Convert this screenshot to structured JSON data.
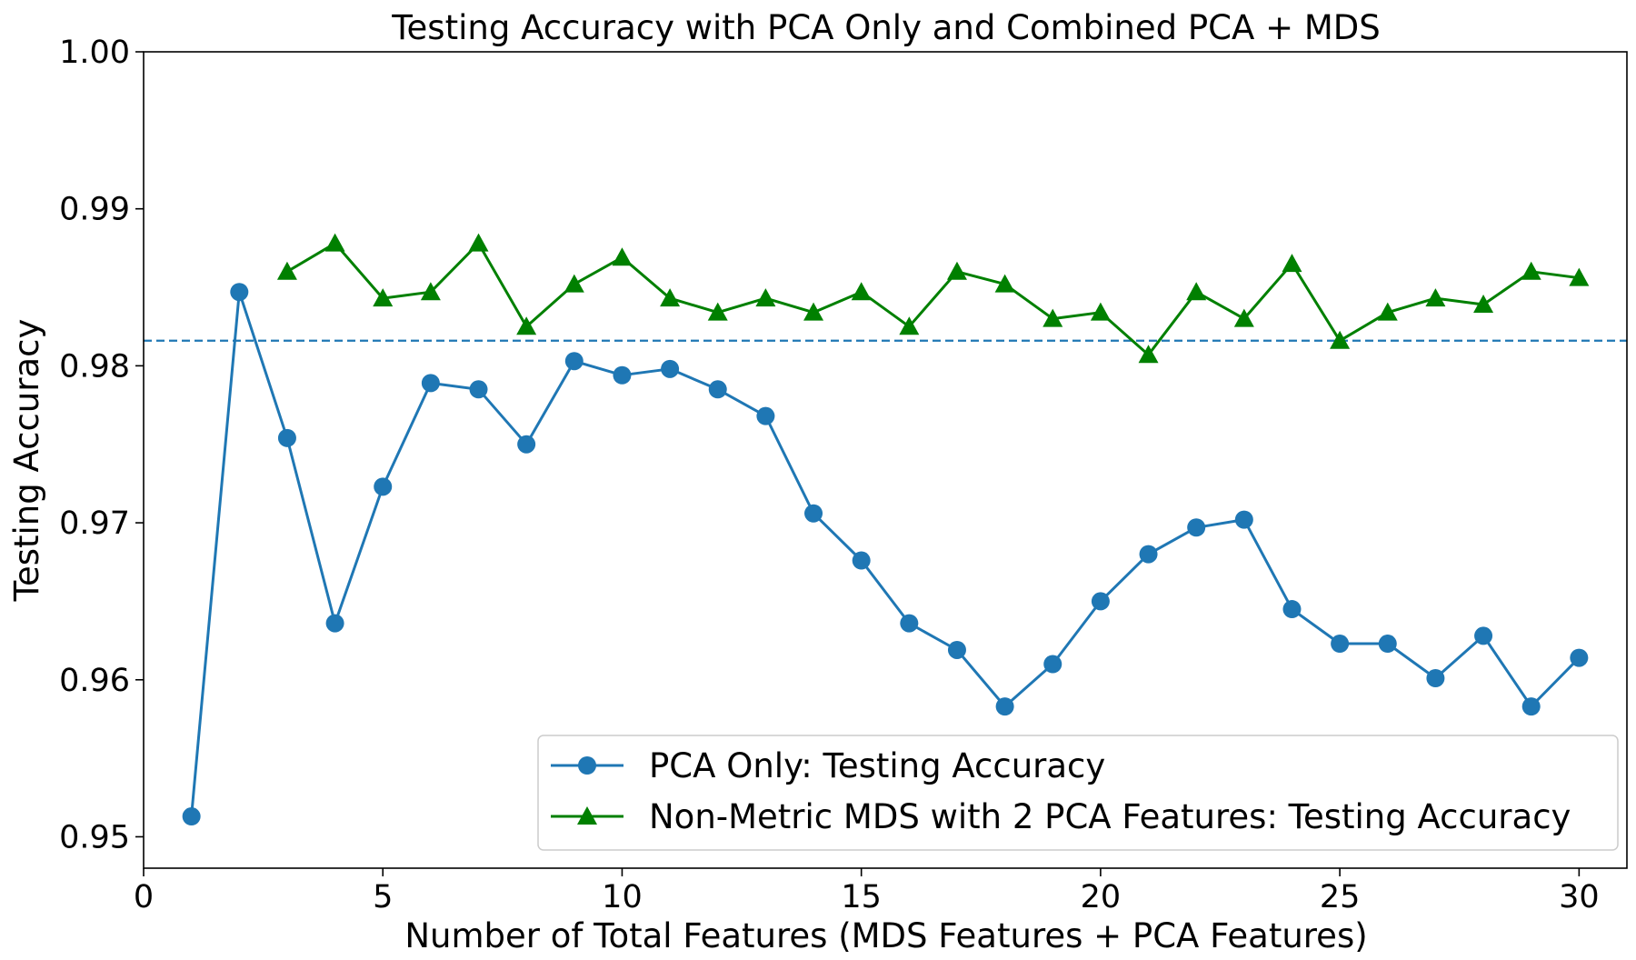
{
  "chart_data": {
    "type": "line",
    "title": "Testing Accuracy with PCA Only and Combined PCA + MDS",
    "xlabel": "Number of Total Features (MDS Features + PCA Features)",
    "ylabel": "Testing Accuracy",
    "xlim": [
      0,
      31
    ],
    "ylim": [
      0.948,
      1.0
    ],
    "xticks": [
      0,
      5,
      10,
      15,
      20,
      25,
      30
    ],
    "xtick_labels": [
      "0",
      "5",
      "10",
      "15",
      "20",
      "25",
      "30"
    ],
    "yticks": [
      0.95,
      0.96,
      0.97,
      0.98,
      0.99,
      1.0
    ],
    "ytick_labels": [
      "0.95",
      "0.96",
      "0.97",
      "0.98",
      "0.99",
      "1.00"
    ],
    "grid": false,
    "legend_position": "lower-right",
    "reference_line": {
      "y": 0.9816,
      "style": "dashed",
      "color": "#1f77b4"
    },
    "series": [
      {
        "name": "PCA Only: Testing Accuracy",
        "color": "#1f77b4",
        "marker": "circle",
        "x": [
          1,
          2,
          3,
          4,
          5,
          6,
          7,
          8,
          9,
          10,
          11,
          12,
          13,
          14,
          15,
          16,
          17,
          18,
          19,
          20,
          21,
          22,
          23,
          24,
          25,
          26,
          27,
          28,
          29,
          30
        ],
        "values": [
          0.9513,
          0.9847,
          0.9754,
          0.9636,
          0.9723,
          0.9789,
          0.9785,
          0.975,
          0.9803,
          0.9794,
          0.9798,
          0.9785,
          0.9768,
          0.9706,
          0.9676,
          0.9636,
          0.9619,
          0.9583,
          0.961,
          0.965,
          0.968,
          0.9697,
          0.9702,
          0.9645,
          0.9623,
          0.9623,
          0.9601,
          0.9628,
          0.9583,
          0.9614
        ]
      },
      {
        "name": "Non-Metric MDS with 2 PCA Features: Testing Accuracy",
        "color": "#008000",
        "marker": "triangle",
        "x": [
          3,
          4,
          5,
          6,
          7,
          8,
          9,
          10,
          11,
          12,
          13,
          14,
          15,
          16,
          17,
          18,
          19,
          20,
          21,
          22,
          23,
          24,
          25,
          26,
          27,
          28,
          29,
          30
        ],
        "values": [
          0.986,
          0.9878,
          0.9843,
          0.9847,
          0.9878,
          0.9825,
          0.9852,
          0.9869,
          0.9843,
          0.9834,
          0.9843,
          0.9834,
          0.9847,
          0.9825,
          0.986,
          0.9852,
          0.983,
          0.9834,
          0.9807,
          0.9847,
          0.983,
          0.9865,
          0.9816,
          0.9834,
          0.9843,
          0.9839,
          0.986,
          0.9856
        ]
      }
    ]
  }
}
